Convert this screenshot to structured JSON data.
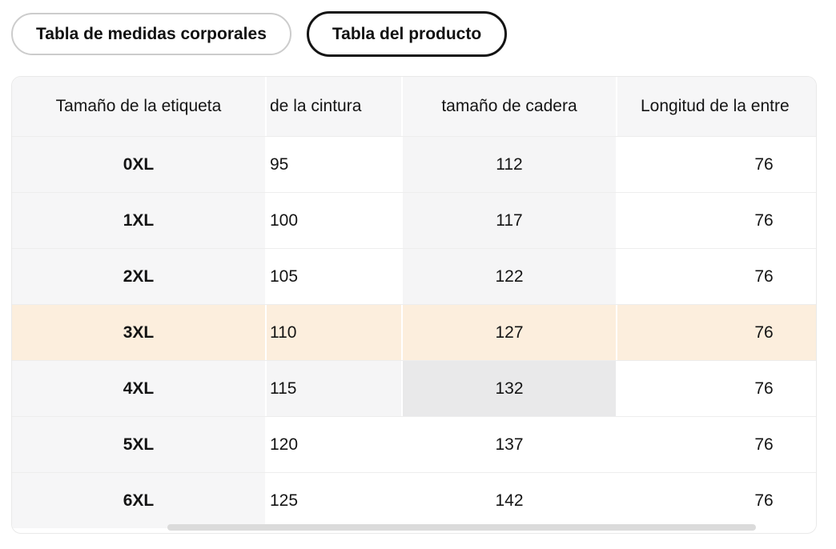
{
  "tabs": {
    "body_measurements_label": "Tabla de medidas corporales",
    "product_label": "Tabla del producto",
    "selected": "Tabla del producto"
  },
  "table": {
    "columns": [
      "Tamaño de la etiqueta",
      "de la cintura",
      "tamaño de cadera",
      "Longitud de la entre"
    ],
    "rows": [
      {
        "label": "0XL",
        "values": [
          "95",
          "112",
          "76"
        ]
      },
      {
        "label": "1XL",
        "values": [
          "100",
          "117",
          "76"
        ]
      },
      {
        "label": "2XL",
        "values": [
          "105",
          "122",
          "76"
        ]
      },
      {
        "label": "3XL",
        "values": [
          "110",
          "127",
          "76"
        ]
      },
      {
        "label": "4XL",
        "values": [
          "115",
          "132",
          "76"
        ]
      },
      {
        "label": "5XL",
        "values": [
          "120",
          "137",
          "76"
        ]
      },
      {
        "label": "6XL",
        "values": [
          "125",
          "142",
          "76"
        ]
      }
    ],
    "state": {
      "highlighted_row": "3XL",
      "hovered_cell_row": "4XL",
      "hovered_cell_column": "tamaño de cadera",
      "horizontally_scrolled": true
    }
  },
  "colors": {
    "highlight_row_bg": "#fceedd",
    "hovered_cell_bg": "#e9e9ea",
    "column_hover_bg": "#f5f5f6",
    "header_bg": "#f6f6f7",
    "selected_tab_border": "#141414",
    "unselected_tab_border": "#cccccc",
    "scrollbar_thumb": "#dbdbdb"
  }
}
